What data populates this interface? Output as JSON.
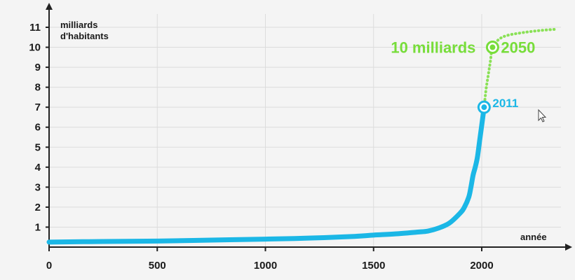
{
  "chart_data": {
    "type": "line",
    "title": "",
    "ylabel_line1": "milliards",
    "ylabel_line2": "d'habitants",
    "xlabel": "année",
    "xlim": [
      0,
      2380
    ],
    "ylim": [
      0,
      11.5
    ],
    "x_ticks": [
      0,
      500,
      1000,
      1500,
      2000
    ],
    "y_ticks": [
      1,
      2,
      3,
      4,
      5,
      6,
      7,
      8,
      9,
      10,
      11
    ],
    "grid": true,
    "series": [
      {
        "name": "",
        "style": "solid",
        "color": "#1bb7e6",
        "points": [
          [
            0,
            0.25
          ],
          [
            250,
            0.28
          ],
          [
            500,
            0.3
          ],
          [
            750,
            0.35
          ],
          [
            1000,
            0.4
          ],
          [
            1200,
            0.45
          ],
          [
            1400,
            0.53
          ],
          [
            1500,
            0.6
          ],
          [
            1600,
            0.66
          ],
          [
            1700,
            0.75
          ],
          [
            1750,
            0.8
          ],
          [
            1800,
            0.95
          ],
          [
            1850,
            1.2
          ],
          [
            1900,
            1.7
          ],
          [
            1920,
            2.0
          ],
          [
            1940,
            2.5
          ],
          [
            1950,
            3.0
          ],
          [
            1960,
            3.6
          ],
          [
            1970,
            4.0
          ],
          [
            1980,
            4.5
          ],
          [
            1990,
            5.3
          ],
          [
            2000,
            6.1
          ],
          [
            2011,
            7.0
          ]
        ]
      },
      {
        "name": "",
        "style": "dotted",
        "color": "#77dd3a",
        "points": [
          [
            2011,
            7.0
          ],
          [
            2020,
            7.9
          ],
          [
            2030,
            8.6
          ],
          [
            2040,
            9.3
          ],
          [
            2050,
            10.0
          ],
          [
            2080,
            10.4
          ],
          [
            2120,
            10.6
          ],
          [
            2200,
            10.75
          ],
          [
            2280,
            10.85
          ],
          [
            2340,
            10.9
          ]
        ]
      }
    ],
    "markers": [
      {
        "x": 2011,
        "y": 7.0,
        "color": "#1bb7e6",
        "label": "2011"
      },
      {
        "x": 2050,
        "y": 10.0,
        "color": "#77dd3a",
        "label": "2050",
        "label_left": "10 milliards"
      }
    ]
  },
  "cursor": {
    "icon": "mouse-pointer-icon"
  }
}
